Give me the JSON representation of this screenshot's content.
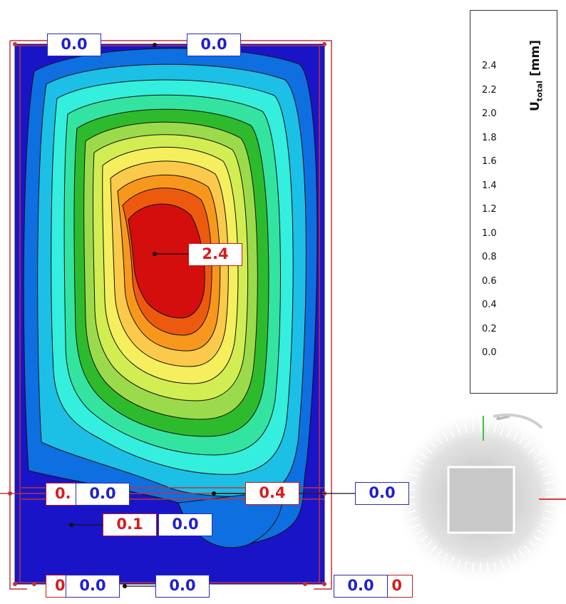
{
  "legend": {
    "title_main": "U",
    "title_sub": "total",
    "title_unit": "[mm]",
    "ticks": [
      "2.4",
      "2.2",
      "2.0",
      "1.8",
      "1.6",
      "1.4",
      "1.2",
      "1.0",
      "0.8",
      "0.6",
      "0.4",
      "0.2",
      "0.0"
    ],
    "colors": [
      "#d40d0d",
      "#ee5a0d",
      "#f7981d",
      "#fbca4a",
      "#f5ef5e",
      "#d1ed52",
      "#9bdb4b",
      "#2dbb2d",
      "#32e4a0",
      "#34eede",
      "#1cbfe6",
      "#0e6fe0",
      "#1a14c8"
    ]
  },
  "labels": {
    "max": "2.4",
    "top_left": "0.0",
    "top_right": "0.0",
    "mid_left_red": "0.",
    "mid_left_blue": "0.0",
    "mid_center": "0.4",
    "mid_right": "0.0",
    "low_red": "0.1",
    "low_blue": "0.0",
    "bottom_left_red": "0",
    "bottom_left": "0.0",
    "bottom_center": "0.0",
    "bottom_right": "0.0",
    "bottom_right_red": "0"
  },
  "nav_cube": {
    "rotate_icon": "rotate-arrow-icon"
  }
}
